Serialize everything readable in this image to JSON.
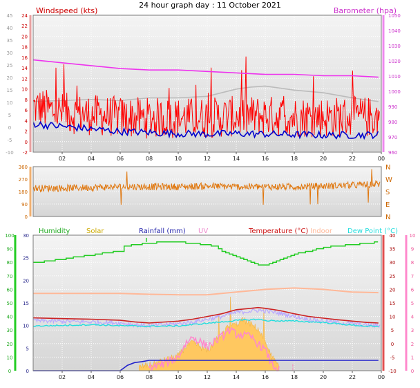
{
  "title": "24 hour graph day : 11 October 2021",
  "colors": {
    "windspeed": "#ff0000",
    "gust": "#ff0000",
    "average": "#0000cc",
    "barometer": "#ee33ee",
    "grey_line": "#bbbbbb",
    "direction": "#e07810",
    "humidity": "#22cc22",
    "solar": "#ffc860",
    "rainfall": "#2222cc",
    "uv": "#ff88cc",
    "temperature": "#cc2222",
    "indoor": "#ffb898",
    "dewpoint": "#22dddd",
    "lavender": "#b8a8ff"
  },
  "chart_data": [
    {
      "type": "line",
      "panel": "wind",
      "x_ticks": [
        "02",
        "04",
        "06",
        "08",
        "10",
        "12",
        "14",
        "16",
        "18",
        "20",
        "22",
        "00"
      ],
      "xlim": [
        0,
        24
      ],
      "left_axis": {
        "label": "Windspeed (kts)",
        "ticks": [
          "-2",
          "0",
          "2",
          "4",
          "6",
          "8",
          "10",
          "12",
          "14",
          "16",
          "18",
          "20",
          "22",
          "24"
        ],
        "ylim": [
          -1,
          25.5
        ]
      },
      "outer_left_axis": {
        "ticks": [
          "-10",
          "-5",
          "0",
          "5",
          "10",
          "15",
          "20",
          "25",
          "30",
          "35",
          "40",
          "45"
        ]
      },
      "right_axis": {
        "label": "Barometer (hpa)",
        "ticks": [
          "960",
          "970",
          "980",
          "990",
          "1000",
          "1010",
          "1020",
          "1030",
          "1040",
          "1050"
        ],
        "ylim": [
          955,
          1050
        ]
      },
      "series": [
        {
          "name": "Barometer (hpa)",
          "axis": "right",
          "x": [
            0,
            2,
            4,
            6,
            8,
            10,
            12,
            14,
            16,
            18,
            20,
            22,
            23.8
          ],
          "values": [
            1019,
            1017,
            1015,
            1013,
            1012,
            1012,
            1011,
            1010,
            1009,
            1009,
            1008,
            1008,
            1007
          ]
        },
        {
          "axis": "left",
          "x": [
            0,
            2,
            4,
            6,
            8,
            10,
            12,
            14,
            15,
            16,
            18,
            20,
            22,
            23.8
          ],
          "values": [
            8.8,
            9,
            9.2,
            9,
            9.5,
            9.5,
            9.8,
            11.2,
            11.6,
            11.8,
            11,
            10.5,
            9.5,
            8.8
          ]
        },
        {
          "axis": "left",
          "x": [
            0,
            1,
            2,
            4,
            6,
            8,
            10,
            12,
            14,
            16,
            18,
            20,
            22,
            23.8
          ],
          "values": [
            7.8,
            7.2,
            6.6,
            6.2,
            5.8,
            5.6,
            5.6,
            5.7,
            5.9,
            6,
            5.8,
            5.8,
            5.8,
            5.8
          ],
          "noise_amplitude": 4
        },
        {
          "axis": "left",
          "x": [
            0,
            1,
            2,
            4,
            6,
            8,
            10,
            12,
            14,
            16,
            18,
            20,
            22,
            23.8
          ],
          "values": [
            4.5,
            4.2,
            4,
            3.5,
            3,
            2.8,
            2.6,
            2.5,
            2.6,
            2.5,
            2.4,
            2.3,
            2.3,
            2.4
          ]
        }
      ]
    },
    {
      "type": "line",
      "panel": "direction",
      "xlim": [
        0,
        24
      ],
      "left_axis": {
        "ticks": [
          "0",
          "90",
          "180",
          "270",
          "360"
        ],
        "ylim": [
          0,
          360
        ]
      },
      "right_axis": {
        "ticks": [
          "N",
          "E",
          "S",
          "W",
          "N"
        ]
      },
      "series": [
        {
          "axis": "left",
          "x": [
            0,
            2,
            4,
            6,
            8,
            10,
            12,
            14,
            16,
            18,
            20,
            22,
            23.8
          ],
          "values": [
            205,
            205,
            210,
            215,
            215,
            215,
            220,
            215,
            215,
            215,
            220,
            225,
            235
          ]
        }
      ]
    },
    {
      "type": "line",
      "panel": "temperature",
      "x_ticks": [
        "02",
        "04",
        "06",
        "08",
        "10",
        "12",
        "14",
        "16",
        "18",
        "20",
        "22",
        "00"
      ],
      "xlim": [
        0,
        24
      ],
      "outer_left_axis": {
        "ticks": [
          "0",
          "10",
          "20",
          "30",
          "40",
          "50",
          "60",
          "70",
          "80",
          "90",
          "100"
        ]
      },
      "left_axis": {
        "ticks": [
          "0",
          "5",
          "10",
          "15",
          "20",
          "25",
          "30"
        ],
        "ylim": [
          0,
          30
        ]
      },
      "right_axis": {
        "ticks": [
          "-10",
          "-5",
          "0",
          "5",
          "10",
          "15",
          "20",
          "25",
          "30",
          "35",
          "40"
        ],
        "ylim": [
          -10,
          40
        ]
      },
      "outer_right_axis": {
        "ticks": [
          "0",
          "1",
          "2",
          "3",
          "4",
          "5",
          "6",
          "7",
          "8",
          "9",
          "10"
        ]
      },
      "legend": [
        "Humidity",
        "Solar",
        "Rainfall (mm)",
        "UV",
        "Temperature (°C)",
        "Indoor",
        "Dew Point (°C)"
      ],
      "series": [
        {
          "name": "Humidity",
          "axis": "outer_left",
          "scale": [
            0,
            100
          ],
          "x": [
            0,
            0.5,
            1,
            2,
            3,
            4,
            5,
            6,
            6.3,
            7,
            8,
            9,
            10,
            11,
            12,
            12.5,
            13,
            13.5,
            14,
            15,
            15.5,
            16,
            17,
            18,
            19,
            20,
            21,
            22,
            23,
            23.8
          ],
          "values": [
            80,
            80,
            81,
            82,
            84,
            85,
            87,
            88,
            92,
            93,
            94,
            95,
            95,
            94,
            93,
            92,
            88,
            86,
            84,
            80,
            78,
            78,
            82,
            86,
            88,
            91,
            92,
            93,
            94,
            95
          ]
        },
        {
          "name": "Indoor",
          "axis": "right",
          "scale": [
            -10,
            40
          ],
          "x": [
            0,
            2,
            4,
            6,
            8,
            10,
            12,
            14,
            16,
            18,
            20,
            22,
            23.8
          ],
          "values": [
            18.5,
            18.5,
            18.5,
            18.5,
            18.2,
            18,
            18,
            19,
            20,
            20.5,
            20,
            19,
            18.8
          ]
        },
        {
          "name": "Temperature (°C)",
          "axis": "right",
          "scale": [
            -10,
            40
          ],
          "x": [
            0,
            2,
            4,
            6,
            7,
            8,
            10,
            11,
            12,
            13,
            14,
            15,
            15.5,
            16,
            17,
            18,
            19,
            20,
            21,
            22,
            23,
            23.8
          ],
          "values": [
            9.5,
            9.2,
            9,
            8.6,
            8,
            7.6,
            8.3,
            9,
            10,
            11,
            12.5,
            13,
            13.3,
            13,
            12.2,
            11,
            10,
            9.4,
            8.8,
            8.3,
            7.8,
            7.6
          ]
        },
        {
          "name": "Dew Point (°C)",
          "axis": "right",
          "scale": [
            -10,
            40
          ],
          "x": [
            0,
            2,
            4,
            6,
            8,
            10,
            12,
            14,
            15.5,
            16,
            18,
            20,
            22,
            23.8
          ],
          "values": [
            6.5,
            6.7,
            7,
            6.6,
            6.4,
            6.5,
            7.5,
            8.5,
            9,
            8.5,
            8.3,
            7.8,
            6.8,
            6.2
          ]
        },
        {
          "name": "Rainfall (mm)",
          "axis": "left",
          "scale": [
            0,
            30
          ],
          "x": [
            0,
            5.5,
            6,
            6.5,
            7,
            7.5,
            8,
            23.8
          ],
          "values": [
            0,
            0,
            0,
            1.2,
            1.8,
            2,
            2.3,
            2.3
          ]
        },
        {
          "name": "Solar",
          "axis": "left",
          "scale": [
            0,
            30
          ],
          "x": [
            7.3,
            8,
            9,
            10,
            10.5,
            11,
            12,
            12.5,
            13,
            13.5,
            14,
            14.5,
            15,
            15.5,
            16,
            16.5,
            17
          ],
          "values": [
            0.5,
            1,
            2,
            3,
            5,
            6,
            4,
            6,
            8,
            9.5,
            10,
            11,
            10,
            9,
            6,
            2.5,
            0.5
          ],
          "noise_amplitude": 1.5
        },
        {
          "name": "UV",
          "axis": "outer_right",
          "scale": [
            0,
            10
          ],
          "x": [
            8,
            9,
            10,
            10.5,
            11,
            12,
            13,
            13.5,
            14,
            15,
            16,
            16.5,
            17
          ],
          "values": [
            0.2,
            0.5,
            1,
            2,
            2.5,
            1.8,
            2.5,
            3,
            2.7,
            2.5,
            1.5,
            0.4,
            0
          ]
        }
      ]
    }
  ]
}
